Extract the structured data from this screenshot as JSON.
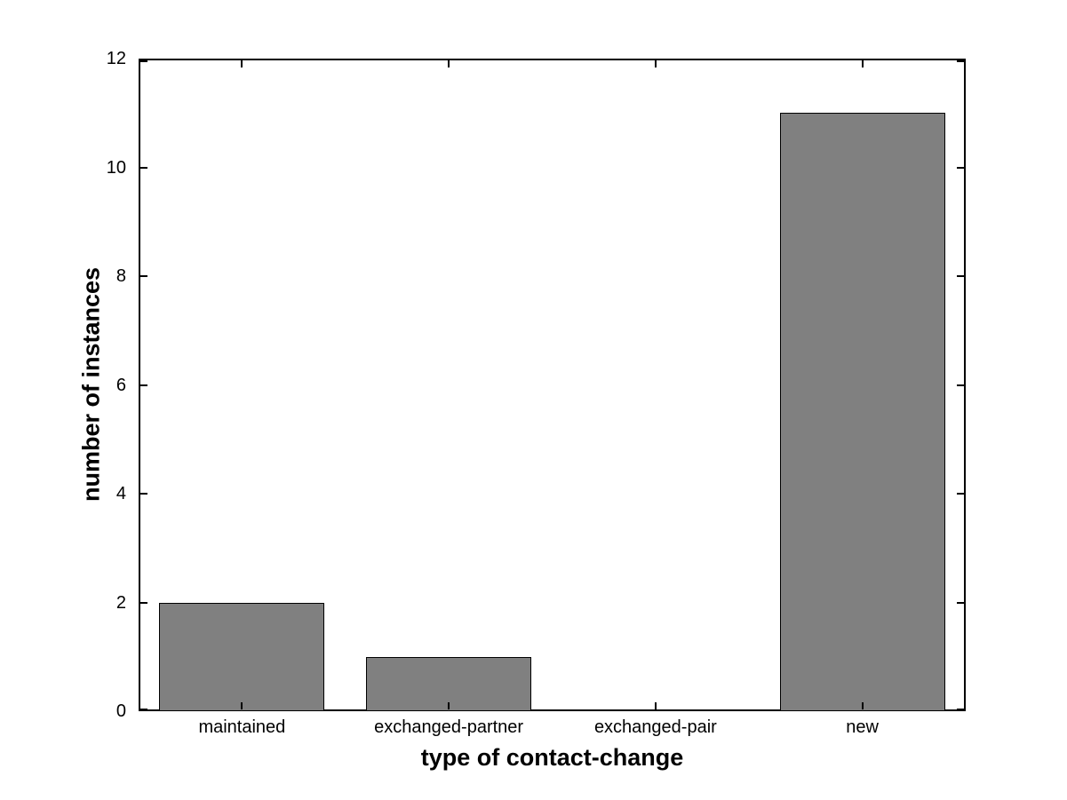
{
  "chart_data": {
    "type": "bar",
    "categories": [
      "maintained",
      "exchanged-partner",
      "exchanged-pair",
      "new"
    ],
    "values": [
      2,
      1,
      0,
      11
    ],
    "title": "",
    "xlabel": "type of contact-change",
    "ylabel": "number of instances",
    "ylim": [
      0,
      12
    ],
    "yticks": [
      0,
      2,
      4,
      6,
      8,
      10,
      12
    ],
    "ytick_labels": [
      "0",
      "2",
      "4",
      "6",
      "8",
      "10",
      "12"
    ],
    "bar_width_fraction": 0.8,
    "grid": false,
    "legend_position": "none",
    "colors": {
      "bar_fill": "#808080",
      "bar_edge": "#000000",
      "axis": "#000000",
      "background": "#ffffff",
      "text": "#000000"
    }
  }
}
